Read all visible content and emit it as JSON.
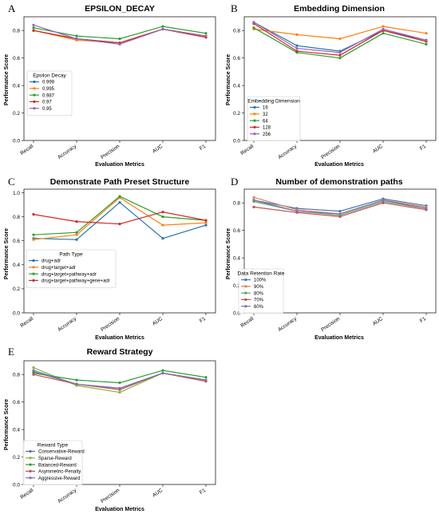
{
  "metrics": [
    "Recall",
    "Accuracy",
    "Precision",
    "AUC",
    "F1"
  ],
  "panels": [
    {
      "letter": "A",
      "title": "EPSILON_DECAY",
      "xlabel": "Evaluation Metrics",
      "ylabel": "Performance Score",
      "legend_title": "Epsilon Decay"
    },
    {
      "letter": "B",
      "title": "Embedding Dimension",
      "xlabel": "Evaluation Metrics",
      "ylabel": "Performance Score",
      "legend_title": "Embedding Dimension"
    },
    {
      "letter": "C",
      "title": "Demonstrate Path Preset Structure",
      "xlabel": "Evaluation Metrics",
      "ylabel": "Performance Score",
      "legend_title": "Path Type"
    },
    {
      "letter": "D",
      "title": "Number of demonstration paths",
      "xlabel": "Evaluation Metrics",
      "ylabel": "Performance Score",
      "legend_title": "Data Retention Rate"
    },
    {
      "letter": "E",
      "title": "Reward Strategy",
      "xlabel": "Evaluation Metrics",
      "ylabel": "Performance Score",
      "legend_title": "Reward Type"
    }
  ],
  "chart_data": [
    {
      "type": "line",
      "title": "EPSILON_DECAY",
      "xlabel": "Evaluation Metrics",
      "ylabel": "Performance Score",
      "categories": [
        "Recall",
        "Accuracy",
        "Precision",
        "AUC",
        "F1"
      ],
      "ylim": [
        0,
        0.9
      ],
      "yticks": [
        0.0,
        0.2,
        0.4,
        0.6,
        0.8
      ],
      "legend_title": "Epsilon Decay",
      "legend_position": "center-left",
      "series": [
        {
          "name": "0.999",
          "color": "#1f77b4",
          "values": [
            0.8,
            0.74,
            0.71,
            0.81,
            0.76
          ]
        },
        {
          "name": "0.995",
          "color": "#ff7f0e",
          "values": [
            0.8,
            0.73,
            0.71,
            0.81,
            0.76
          ]
        },
        {
          "name": "0.987",
          "color": "#2ca02c",
          "values": [
            0.82,
            0.76,
            0.74,
            0.83,
            0.78
          ]
        },
        {
          "name": "0.97",
          "color": "#d62728",
          "values": [
            0.8,
            0.74,
            0.71,
            0.81,
            0.75
          ]
        },
        {
          "name": "0.95",
          "color": "#9467bd",
          "values": [
            0.84,
            0.74,
            0.7,
            0.81,
            0.76
          ]
        }
      ]
    },
    {
      "type": "line",
      "title": "Embedding Dimension",
      "xlabel": "Evaluation Metrics",
      "ylabel": "Performance Score",
      "categories": [
        "Recall",
        "Accuracy",
        "Precision",
        "AUC",
        "F1"
      ],
      "ylim": [
        0,
        0.9
      ],
      "yticks": [
        0.0,
        0.2,
        0.4,
        0.6,
        0.8
      ],
      "legend_title": "Embedding Dimension",
      "legend_position": "center-left",
      "series": [
        {
          "name": "16",
          "color": "#1f77b4",
          "values": [
            0.86,
            0.69,
            0.65,
            0.8,
            0.73
          ]
        },
        {
          "name": "32",
          "color": "#ff7f0e",
          "values": [
            0.81,
            0.77,
            0.74,
            0.83,
            0.78
          ]
        },
        {
          "name": "64",
          "color": "#2ca02c",
          "values": [
            0.82,
            0.64,
            0.6,
            0.78,
            0.7
          ]
        },
        {
          "name": "128",
          "color": "#d62728",
          "values": [
            0.85,
            0.65,
            0.62,
            0.8,
            0.72
          ]
        },
        {
          "name": "256",
          "color": "#9467bd",
          "values": [
            0.86,
            0.67,
            0.64,
            0.81,
            0.73
          ]
        }
      ]
    },
    {
      "type": "line",
      "title": "Demonstrate Path Preset Structure",
      "xlabel": "Evaluation Metrics",
      "ylabel": "Performance Score",
      "categories": [
        "Recall",
        "Accuracy",
        "Precision",
        "AUC",
        "F1"
      ],
      "ylim": [
        0,
        1.03
      ],
      "yticks": [
        0.0,
        0.2,
        0.4,
        0.6,
        0.8,
        1.0
      ],
      "legend_title": "Path Type",
      "legend_position": "center-left",
      "series": [
        {
          "name": "drug+adr",
          "color": "#1f77b4",
          "values": [
            0.62,
            0.61,
            0.92,
            0.62,
            0.73
          ]
        },
        {
          "name": "drug+target+adr",
          "color": "#ff7f0e",
          "values": [
            0.61,
            0.65,
            0.96,
            0.73,
            0.75
          ]
        },
        {
          "name": "drug+target+pathway+adr",
          "color": "#2ca02c",
          "values": [
            0.65,
            0.67,
            0.97,
            0.8,
            0.77
          ]
        },
        {
          "name": "drug+target+pathway+gene+adr",
          "color": "#d62728",
          "values": [
            0.82,
            0.76,
            0.74,
            0.84,
            0.77
          ]
        }
      ]
    },
    {
      "type": "line",
      "title": "Number of demonstration paths",
      "xlabel": "Evaluation Metrics",
      "ylabel": "Performance Score",
      "categories": [
        "Recall",
        "Accuracy",
        "Precision",
        "AUC",
        "F1"
      ],
      "ylim": [
        0,
        0.9
      ],
      "yticks": [
        0.0,
        0.2,
        0.4,
        0.6,
        0.8
      ],
      "legend_title": "Data Retention Rate",
      "legend_position": "center-left",
      "series": [
        {
          "name": "100%",
          "color": "#4c72b0",
          "values": [
            0.82,
            0.76,
            0.74,
            0.83,
            0.78
          ]
        },
        {
          "name": "90%",
          "color": "#dd8452",
          "values": [
            0.84,
            0.75,
            0.72,
            0.82,
            0.77
          ]
        },
        {
          "name": "80%",
          "color": "#55a868",
          "values": [
            0.81,
            0.74,
            0.71,
            0.81,
            0.76
          ]
        },
        {
          "name": "70%",
          "color": "#c44e52",
          "values": [
            0.77,
            0.73,
            0.7,
            0.8,
            0.75
          ]
        },
        {
          "name": "60%",
          "color": "#8172b3",
          "values": [
            0.82,
            0.74,
            0.72,
            0.82,
            0.76
          ]
        }
      ]
    },
    {
      "type": "line",
      "title": "Reward Strategy",
      "xlabel": "Evaluation Metrics",
      "ylabel": "Performance Score",
      "categories": [
        "Recall",
        "Accuracy",
        "Precision",
        "AUC",
        "F1"
      ],
      "ylim": [
        0,
        0.9
      ],
      "yticks": [
        0.0,
        0.2,
        0.4,
        0.6,
        0.8
      ],
      "legend_title": "Reward Type",
      "legend_position": "bottom-left",
      "series": [
        {
          "name": "Conservative-Reward",
          "color": "#4c72b0",
          "values": [
            0.82,
            0.73,
            0.7,
            0.81,
            0.76
          ]
        },
        {
          "name": "Sparse-Reward",
          "color": "#8db33a",
          "values": [
            0.85,
            0.72,
            0.67,
            0.81,
            0.76
          ]
        },
        {
          "name": "Balanced-Reward",
          "color": "#2ca02c",
          "values": [
            0.81,
            0.76,
            0.74,
            0.83,
            0.78
          ]
        },
        {
          "name": "Asymmetric-Penalty",
          "color": "#c44e52",
          "values": [
            0.8,
            0.73,
            0.69,
            0.81,
            0.75
          ]
        },
        {
          "name": "Aggressive-Reward",
          "color": "#8172b3",
          "values": [
            0.83,
            0.73,
            0.7,
            0.81,
            0.76
          ]
        }
      ]
    }
  ]
}
